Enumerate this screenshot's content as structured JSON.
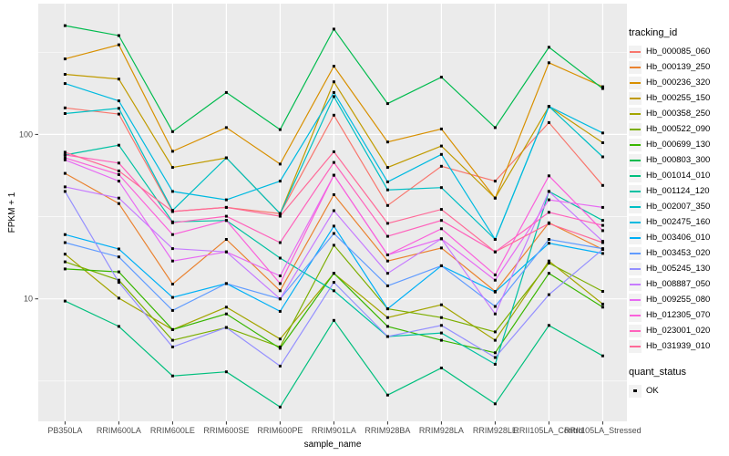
{
  "chart_data": {
    "type": "line",
    "title": "",
    "xlabel": "sample_name",
    "ylabel": "FPKM + 1",
    "yscale": "log",
    "y_ticks": [
      10,
      100
    ],
    "y_minor_ticks": [
      3.162,
      31.62,
      316.2
    ],
    "ylim": [
      1.8,
      570
    ],
    "legend_position": "right",
    "grid": "on",
    "marker": {
      "shape": "square",
      "color": "#000000",
      "legend_label": "OK"
    },
    "categories": [
      "PB350LA",
      "RRIM600LA",
      "RRIM600LE",
      "RRIM600SE",
      "RRIM600PE",
      "RRIM901LA",
      "RRIM928BA",
      "RRIM928LA",
      "RRIM928LE",
      "RRII105LA_Control",
      "RRII105LA_Stressed"
    ],
    "series": [
      {
        "name": "Hb_000085_060",
        "color": "#F8766D",
        "values": [
          145,
          133,
          34,
          36,
          33,
          131,
          37,
          64,
          52,
          118,
          49
        ]
      },
      {
        "name": "Hb_000139_250",
        "color": "#EA8331",
        "values": [
          58,
          38,
          12.3,
          23,
          11.2,
          43,
          17,
          20.4,
          11.1,
          29,
          20
        ]
      },
      {
        "name": "Hb_000236_320",
        "color": "#D89000",
        "values": [
          288,
          351,
          79,
          110,
          66,
          260,
          90,
          108,
          41,
          273,
          195
        ]
      },
      {
        "name": "Hb_000255_150",
        "color": "#C09B00",
        "values": [
          232,
          217,
          63,
          72,
          33,
          209,
          63,
          85,
          41,
          148,
          89
        ]
      },
      {
        "name": "Hb_000358_250",
        "color": "#A3A500",
        "values": [
          18.7,
          10.1,
          6.5,
          8.9,
          5.7,
          14.3,
          7.7,
          9.2,
          5.6,
          17,
          9.3
        ]
      },
      {
        "name": "Hb_000522_090",
        "color": "#7CAE00",
        "values": [
          16.8,
          13,
          5.6,
          6.7,
          5.1,
          21.2,
          8.7,
          7.7,
          6.3,
          16.5,
          11.1
        ]
      },
      {
        "name": "Hb_000699_130",
        "color": "#39B600",
        "values": [
          15.2,
          14.6,
          6.5,
          8.1,
          5.0,
          14.3,
          6.8,
          5.6,
          4.7,
          14.3,
          8.9
        ]
      },
      {
        "name": "Hb_000803_300",
        "color": "#00BB4E",
        "values": [
          459,
          399,
          104,
          180,
          107,
          437,
          154,
          223,
          110,
          339,
          190
        ]
      },
      {
        "name": "Hb_001014_010",
        "color": "#00BF7D",
        "values": [
          9.7,
          6.8,
          3.4,
          3.6,
          2.2,
          7.4,
          2.6,
          3.8,
          2.3,
          6.9,
          4.5
        ]
      },
      {
        "name": "Hb_001124_120",
        "color": "#00C1A3",
        "values": [
          75,
          86,
          29.4,
          30,
          17.7,
          11.2,
          5.9,
          6.2,
          4.0,
          45,
          30
        ]
      },
      {
        "name": "Hb_002007_350",
        "color": "#00BFC4",
        "values": [
          134,
          144,
          34.5,
          72,
          33,
          170,
          46,
          47.5,
          23,
          148,
          73
        ]
      },
      {
        "name": "Hb_002475_160",
        "color": "#00BAE0",
        "values": [
          204,
          160,
          45,
          40,
          52,
          180,
          51.5,
          75.6,
          23,
          148,
          102
        ]
      },
      {
        "name": "Hb_003406_010",
        "color": "#00B0F6",
        "values": [
          24.6,
          20.1,
          10.2,
          12.4,
          8.4,
          27.7,
          8.7,
          15.9,
          11,
          21.8,
          18.9
        ]
      },
      {
        "name": "Hb_003453_020",
        "color": "#619CFF",
        "values": [
          22,
          18,
          8.5,
          12.4,
          10,
          25,
          12,
          15.9,
          9,
          23,
          20.2
        ]
      },
      {
        "name": "Hb_005245_130",
        "color": "#9590FF",
        "values": [
          45,
          12.6,
          5.1,
          6.7,
          3.9,
          12.6,
          5.9,
          6.9,
          4.4,
          10.6,
          20
        ]
      },
      {
        "name": "Hb_008887_050",
        "color": "#C77CFF",
        "values": [
          48,
          41,
          20.2,
          19.3,
          10,
          34.4,
          14.3,
          23.2,
          8.1,
          45,
          22.4
        ]
      },
      {
        "name": "Hb_009255_080",
        "color": "#E76BF3",
        "values": [
          70,
          52,
          17,
          19.3,
          13.8,
          56.5,
          18.5,
          23.2,
          13,
          40,
          36
        ]
      },
      {
        "name": "Hb_012305_070",
        "color": "#FA62DB",
        "values": [
          72,
          57,
          24.6,
          30,
          12.4,
          56.5,
          18.5,
          26.7,
          14,
          56,
          26
        ]
      },
      {
        "name": "Hb_023001_020",
        "color": "#FF62BC",
        "values": [
          75,
          67,
          29,
          31.8,
          22,
          67.6,
          24,
          30,
          19.3,
          33.6,
          28
        ]
      },
      {
        "name": "Hb_031939_010",
        "color": "#FF6A98",
        "values": [
          78,
          60,
          34,
          36,
          31.8,
          78.5,
          28.8,
          35,
          19.3,
          28.7,
          22
        ]
      }
    ]
  },
  "legend": {
    "tracking_title": "tracking_id",
    "quant_title": "quant_status",
    "quant_items": [
      {
        "label": "OK"
      }
    ]
  },
  "colors": {
    "panel_bg": "#EBEBEB",
    "grid": "#FFFFFF",
    "axis_text": "#4D4D4D",
    "axis_title": "#000000",
    "tick_mark": "#333333",
    "legend_key_bg": "#F2F2F2",
    "marker": "#000000",
    "background": "#FFFFFF"
  }
}
